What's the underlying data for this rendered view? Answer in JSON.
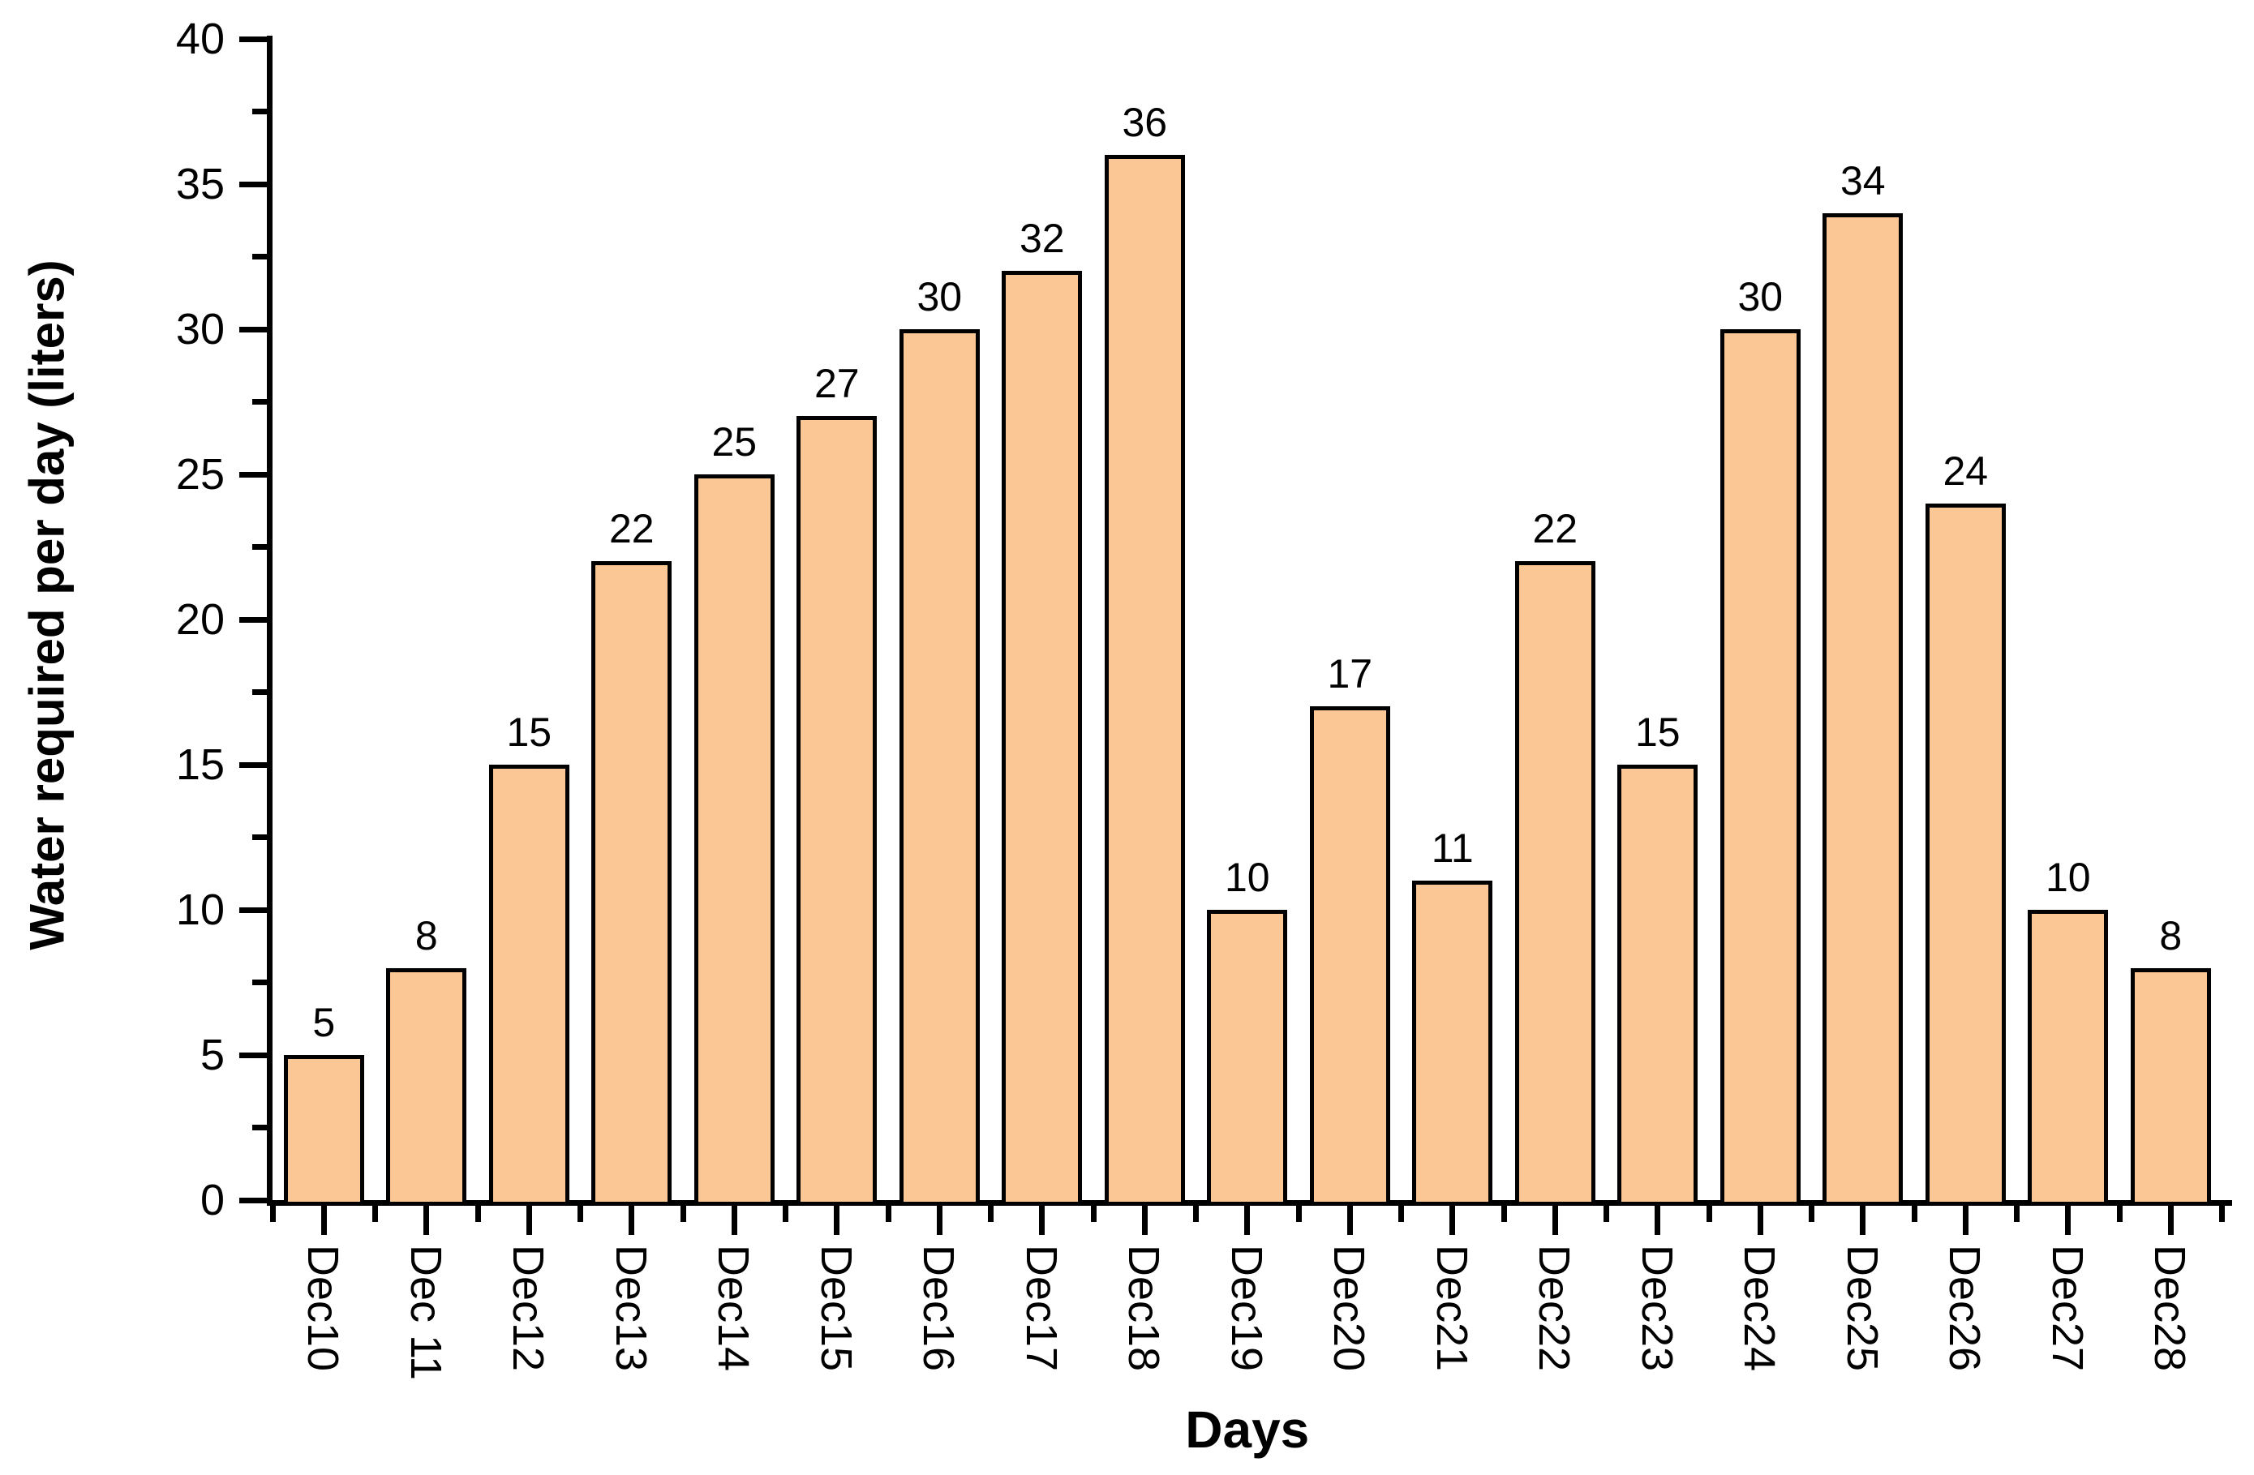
{
  "chart_data": {
    "type": "bar",
    "title": "",
    "xlabel": "Days",
    "ylabel": "Water required per day (liters)",
    "categories": [
      "Dec10",
      "Dec 11",
      "Dec12",
      "Dec13",
      "Dec14",
      "Dec15",
      "Dec16",
      "Dec17",
      "Dec18",
      "Dec19",
      "Dec20",
      "Dec21",
      "Dec22",
      "Dec23",
      "Dec24",
      "Dec25",
      "Dec26",
      "Dec27",
      "Dec28"
    ],
    "values": [
      5,
      8,
      15,
      22,
      25,
      27,
      30,
      32,
      36,
      10,
      17,
      11,
      22,
      15,
      30,
      34,
      24,
      10,
      8
    ],
    "ylim": [
      0,
      40
    ],
    "y_major_step": 5,
    "y_minor_step": 2.5,
    "y_tick_labels": [
      "0",
      "5",
      "10",
      "15",
      "20",
      "25",
      "30",
      "35",
      "40"
    ],
    "value_labels_shown": true,
    "grid": false,
    "legend": "none",
    "colors": {
      "bar_fill": "#FAC795",
      "bar_edge": "#000000",
      "axis": "#000000",
      "text": "#000000",
      "background": "#FFFFFF"
    }
  }
}
